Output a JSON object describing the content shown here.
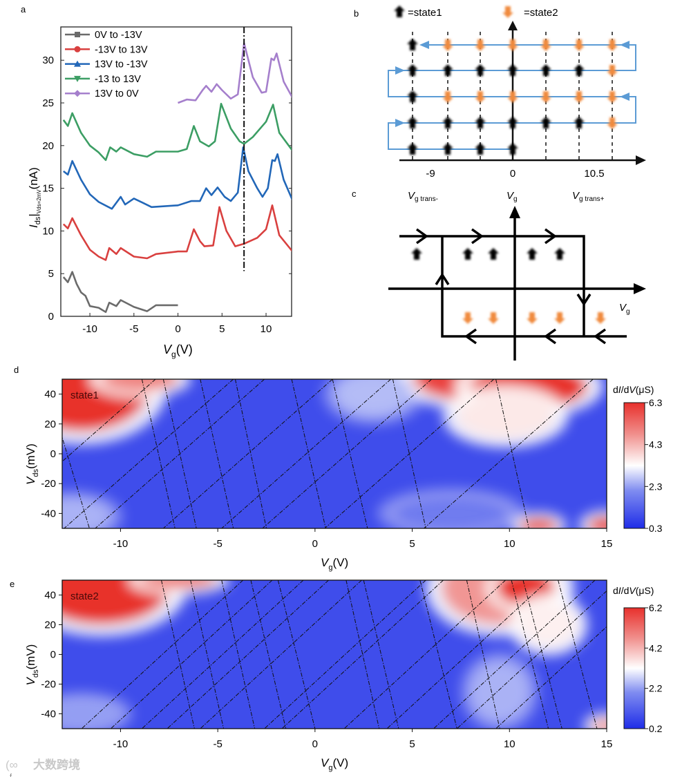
{
  "panel_labels": {
    "a": "a",
    "b": "b",
    "c": "c",
    "d": "d",
    "e": "e",
    "f": "f"
  },
  "watermark": "大数跨境",
  "chart_data": [
    {
      "id": "a",
      "type": "line",
      "xlabel_main": "V",
      "xlabel_sub": "g",
      "xlabel_unit": "(V)",
      "ylabel_main": "I",
      "ylabel_sub": "ds",
      "ylabel_bar": "|",
      "ylabel_sub2": "Vds=2mV",
      "ylabel_unit": "(nA)",
      "xlim": [
        -13.3,
        12.9
      ],
      "ylim": [
        0,
        33.9
      ],
      "xticks": [
        -10,
        -5,
        0,
        5,
        10
      ],
      "yticks": [
        0,
        5,
        10,
        15,
        20,
        25,
        30
      ],
      "vline": {
        "x": 7.5,
        "y_from": 5.3,
        "style": "dash-dot"
      },
      "legend_position": "top-left",
      "series": [
        {
          "name": "0V to -13V",
          "color": "#6b6b6b",
          "marker": "square",
          "points": [
            [
              -13,
              4.6
            ],
            [
              -12.5,
              4
            ],
            [
              -12,
              5.2
            ],
            [
              -11.5,
              3.8
            ],
            [
              -11,
              2.8
            ],
            [
              -10.5,
              2.4
            ],
            [
              -10,
              1.2
            ],
            [
              -9,
              1
            ],
            [
              -8.2,
              0.5
            ],
            [
              -7.8,
              1.6
            ],
            [
              -7,
              1.2
            ],
            [
              -6.5,
              1.9
            ],
            [
              -5,
              1.1
            ],
            [
              -3.5,
              0.6
            ],
            [
              -2.5,
              1.3
            ],
            [
              -1,
              1.3
            ],
            [
              0,
              1.3
            ]
          ]
        },
        {
          "name": "-13V to 13V",
          "color": "#d9403f",
          "marker": "circle",
          "points": [
            [
              -13,
              10.8
            ],
            [
              -12.5,
              10.3
            ],
            [
              -12,
              11.5
            ],
            [
              -11,
              9.5
            ],
            [
              -10,
              7.8
            ],
            [
              -9,
              7
            ],
            [
              -8.2,
              6.6
            ],
            [
              -7.8,
              8
            ],
            [
              -7,
              7.3
            ],
            [
              -6.5,
              8
            ],
            [
              -5,
              7
            ],
            [
              -3.5,
              6.8
            ],
            [
              -2.5,
              7.3
            ],
            [
              0,
              7.6
            ],
            [
              1,
              7.6
            ],
            [
              1.8,
              10.2
            ],
            [
              2.5,
              8.8
            ],
            [
              3,
              8.2
            ],
            [
              4,
              8.3
            ],
            [
              4.7,
              12.8
            ],
            [
              5.5,
              10
            ],
            [
              6.5,
              8.2
            ],
            [
              7.5,
              8.5
            ],
            [
              9,
              9.2
            ],
            [
              10,
              10.2
            ],
            [
              10.7,
              13
            ],
            [
              11.5,
              9.5
            ],
            [
              13,
              7.6
            ]
          ]
        },
        {
          "name": "13V to -13V",
          "color": "#2267b8",
          "marker": "triangle-up",
          "points": [
            [
              -13,
              17
            ],
            [
              -12.5,
              16.6
            ],
            [
              -12,
              18.2
            ],
            [
              -11,
              16
            ],
            [
              -10,
              14.3
            ],
            [
              -9,
              13.4
            ],
            [
              -7.5,
              12.6
            ],
            [
              -6.5,
              14
            ],
            [
              -6,
              13.1
            ],
            [
              -5,
              13.8
            ],
            [
              -4,
              13.3
            ],
            [
              -3,
              12.8
            ],
            [
              0,
              13
            ],
            [
              1.5,
              13.5
            ],
            [
              2.5,
              13.5
            ],
            [
              3.2,
              15
            ],
            [
              3.8,
              14.2
            ],
            [
              4.5,
              15.1
            ],
            [
              5.3,
              14
            ],
            [
              6,
              13.5
            ],
            [
              6.8,
              14.5
            ],
            [
              7.4,
              19.8
            ],
            [
              8,
              17
            ],
            [
              9,
              15
            ],
            [
              9.6,
              14
            ],
            [
              10.2,
              15
            ],
            [
              10.7,
              18.3
            ],
            [
              11,
              18.2
            ],
            [
              11.3,
              19
            ],
            [
              12,
              16
            ],
            [
              13,
              13.6
            ]
          ]
        },
        {
          "name": "-13 to 13V",
          "color": "#3c9e64",
          "marker": "triangle-down",
          "points": [
            [
              -13,
              23
            ],
            [
              -12.5,
              22.3
            ],
            [
              -12,
              23.8
            ],
            [
              -11,
              21.5
            ],
            [
              -10,
              20
            ],
            [
              -9,
              19.2
            ],
            [
              -8.2,
              18.3
            ],
            [
              -7.7,
              19.8
            ],
            [
              -7,
              19.3
            ],
            [
              -6.5,
              19.8
            ],
            [
              -5,
              19
            ],
            [
              -3.5,
              18.7
            ],
            [
              -2.5,
              19.3
            ],
            [
              0,
              19.3
            ],
            [
              1,
              19.6
            ],
            [
              1.8,
              22.3
            ],
            [
              2.5,
              20.5
            ],
            [
              3.5,
              19.9
            ],
            [
              4.2,
              20.5
            ],
            [
              4.9,
              24.9
            ],
            [
              6,
              22
            ],
            [
              7,
              20.5
            ],
            [
              7.5,
              20.2
            ],
            [
              8.5,
              21
            ],
            [
              10,
              22.8
            ],
            [
              10.8,
              24.8
            ],
            [
              11.5,
              21.5
            ],
            [
              13,
              19.4
            ]
          ]
        },
        {
          "name": "13V to 0V",
          "color": "#a57fcc",
          "marker": "diamond",
          "points": [
            [
              0,
              25
            ],
            [
              1,
              25.4
            ],
            [
              2,
              25.3
            ],
            [
              2.8,
              26.5
            ],
            [
              3.2,
              27
            ],
            [
              3.8,
              26.3
            ],
            [
              4.4,
              27.2
            ],
            [
              5,
              26.5
            ],
            [
              6,
              25.5
            ],
            [
              6.8,
              26
            ],
            [
              7.5,
              32
            ],
            [
              8.5,
              28
            ],
            [
              9.5,
              26.2
            ],
            [
              10,
              26.3
            ],
            [
              10.6,
              30.2
            ],
            [
              10.9,
              30
            ],
            [
              11.2,
              30.8
            ],
            [
              12,
              27.5
            ],
            [
              13,
              25.6
            ]
          ]
        }
      ]
    },
    {
      "id": "b",
      "type": "diagram",
      "legend": [
        {
          "state": "state1",
          "label": "=state1",
          "color": "#000000"
        },
        {
          "state": "state2",
          "label": "=state2",
          "color": "#f08a3c"
        }
      ],
      "path_color": "#5b9bd5",
      "axis_labels": [
        "-9",
        "0",
        "10.5"
      ],
      "grid_rows": [
        [
          1,
          2,
          2,
          2,
          2,
          2,
          2
        ],
        [
          1,
          1,
          1,
          1,
          1,
          1,
          2
        ],
        [
          1,
          2,
          2,
          2,
          2,
          2,
          2
        ],
        [
          1,
          1,
          1,
          1,
          1,
          1,
          2
        ],
        [
          1,
          1,
          1,
          1,
          0,
          0,
          0
        ]
      ]
    },
    {
      "id": "c",
      "type": "diagram",
      "labels": {
        "trans_minus_main": "V",
        "trans_minus_sub": "g trans-",
        "vg_main": "V",
        "vg_sub": "g",
        "trans_plus_main": "V",
        "trans_plus_sub": "g trans+",
        "axis_main": "V",
        "axis_sub": "g"
      },
      "upper_state": "state1",
      "lower_state": "state2",
      "upper_arrow_count": 5,
      "lower_arrow_count": 5
    },
    {
      "id": "d",
      "type": "heatmap",
      "annotation": "state1",
      "xlabel_main": "V",
      "xlabel_sub": "g",
      "xlabel_unit": "(V)",
      "ylabel_main": "V",
      "ylabel_sub": "ds",
      "ylabel_unit": "(mV)",
      "xlim": [
        -13,
        15
      ],
      "ylim": [
        -50,
        50
      ],
      "xticks": [
        -10,
        -5,
        0,
        5,
        10,
        15
      ],
      "yticks": [
        -40,
        -20,
        0,
        20,
        40
      ],
      "colorbar": {
        "title_a": "d",
        "title_i": "I",
        "title_b": "/d",
        "title_v": "V",
        "title_unit": "(μS)",
        "range": [
          0.3,
          6.3
        ],
        "ticks": [
          "0.3",
          "2.3",
          "4.3",
          "6.3"
        ]
      },
      "background_value": 0.9,
      "hotspots": [
        [
          -12,
          45,
          3.5,
          30,
          6.5
        ],
        [
          -9,
          50,
          2,
          8,
          5
        ],
        [
          8.5,
          50,
          3.5,
          15,
          6
        ],
        [
          11,
          45,
          3,
          15,
          6.3
        ],
        [
          9.8,
          25,
          2.5,
          15,
          3.6
        ],
        [
          3,
          40,
          2,
          15,
          2.6
        ],
        [
          11.5,
          -48,
          1,
          5,
          6
        ],
        [
          15,
          -48,
          1,
          6,
          6
        ],
        [
          -12.5,
          -42,
          2,
          12,
          2.5
        ],
        [
          7,
          -40,
          3,
          12,
          1.8
        ]
      ],
      "steep_lines": [
        [
          -13.9,
          -11.6
        ],
        [
          -8.9,
          -7.2
        ],
        [
          -7.8,
          -6.1
        ],
        [
          -5.9,
          -4.2
        ],
        [
          -4.1,
          -2.5
        ],
        [
          -1.2,
          0.55
        ],
        [
          0.9,
          2.7
        ],
        [
          4.0,
          5.7
        ],
        [
          9.3,
          11.0
        ]
      ],
      "shallow_lines": [
        [
          -8.2,
          -16.9
        ],
        [
          -4.2,
          -12.9
        ],
        [
          -2.6,
          -11.3
        ],
        [
          0.9,
          -7.8
        ],
        [
          3.9,
          -4.8
        ],
        [
          6.0,
          -2.7
        ],
        [
          9.2,
          0.5
        ],
        [
          14.3,
          5.6
        ]
      ]
    },
    {
      "id": "e",
      "type": "heatmap",
      "annotation": "state2",
      "xlabel_main": "V",
      "xlabel_sub": "g",
      "xlabel_unit": "(V)",
      "ylabel_main": "V",
      "ylabel_sub": "ds",
      "ylabel_unit": "(mV)",
      "xlim": [
        -13,
        15
      ],
      "ylim": [
        -50,
        50
      ],
      "xticks": [
        -10,
        -5,
        0,
        5,
        10,
        15
      ],
      "yticks": [
        -40,
        -20,
        0,
        20,
        40
      ],
      "colorbar": {
        "title_a": "d",
        "title_i": "I",
        "title_b": "/d",
        "title_v": "V",
        "title_unit": "(μS)",
        "range": [
          0.2,
          6.2
        ],
        "ticks": [
          "0.2",
          "2.2",
          "4.2",
          "6.2"
        ]
      },
      "background_value": 0.8,
      "hotspots": [
        [
          -11,
          45,
          3.5,
          25,
          6.5
        ],
        [
          -7,
          50,
          2,
          6,
          5
        ],
        [
          9.5,
          45,
          3,
          25,
          4.6
        ],
        [
          10.8,
          45,
          1.5,
          12,
          6.2
        ],
        [
          12,
          20,
          1.5,
          15,
          3.4
        ],
        [
          15,
          -48,
          0.8,
          5,
          4.5
        ],
        [
          -12,
          -40,
          2,
          10,
          2.2
        ],
        [
          9.5,
          -25,
          1.5,
          20,
          2.4
        ]
      ],
      "steep_lines": [
        [
          -7.9,
          -6.2
        ],
        [
          -6.4,
          -4.7
        ],
        [
          -4.8,
          -3.1
        ],
        [
          -3.3,
          -1.5
        ],
        [
          -1.9,
          0
        ],
        [
          1.6,
          3.3
        ],
        [
          2.5,
          4.3
        ],
        [
          5.4,
          7.3
        ],
        [
          7.8,
          9.5
        ],
        [
          10.1,
          12.0
        ],
        [
          10.7,
          12.7
        ],
        [
          12.5,
          14.5
        ]
      ],
      "shallow_lines": [
        [
          -3.7,
          -12
        ],
        [
          -2.2,
          -10.5
        ],
        [
          -0.6,
          -8.9
        ],
        [
          0.7,
          -7.6
        ],
        [
          2.4,
          -5.9
        ],
        [
          5.7,
          -2.6
        ],
        [
          6.6,
          -1.7
        ],
        [
          9.8,
          1.5
        ],
        [
          12,
          3.7
        ],
        [
          14.4,
          6.1
        ],
        [
          15.6,
          7.3
        ],
        [
          17.6,
          9.3
        ]
      ]
    }
  ]
}
